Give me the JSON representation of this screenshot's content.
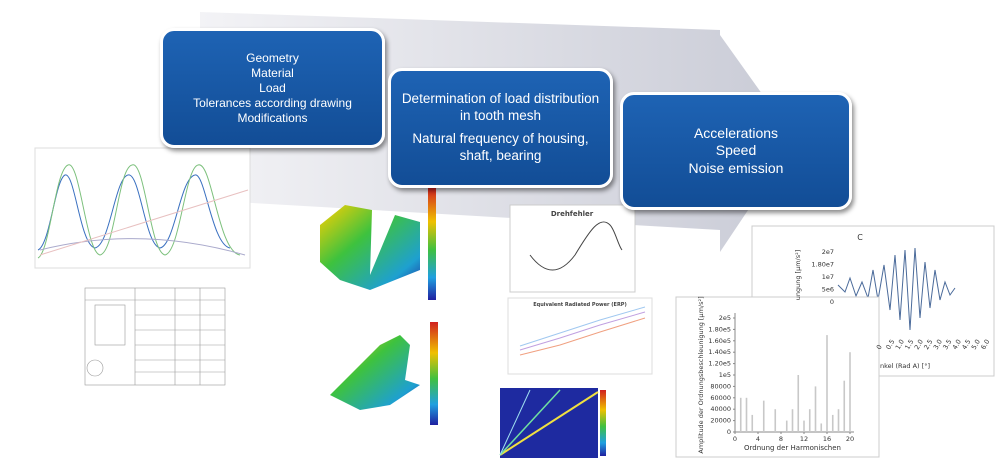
{
  "process_boxes": [
    {
      "lines": [
        "Geometry",
        "Material",
        "Load",
        "Tolerances according drawing",
        "Modifications"
      ]
    },
    {
      "lines": [
        "Determination of load distribution in tooth mesh",
        "Natural frequency of housing, shaft, bearing"
      ]
    },
    {
      "lines": [
        "Accelerations",
        "Speed",
        "Noise emission"
      ]
    }
  ],
  "drehfehler_chart": {
    "title": "Drehfehler"
  },
  "erp_chart": {
    "title": "Equivalent Radiated Power (ERP)"
  },
  "signal_chart": {
    "title": "C",
    "y_label": "ungung [µm/s²]",
    "x_label": "nkel (Rad A) [°]",
    "yticks": [
      "2e7",
      "1.80e7",
      "1e7",
      "5e6",
      "0"
    ],
    "xticks": [
      "0",
      "0.5",
      "1.0",
      "1.5",
      "2.0",
      "2.5",
      "3.0",
      "3.5",
      "4.0",
      "4.5",
      "5.0",
      "6.0"
    ]
  },
  "order_chart": {
    "y_label": "Amplitude der Ordnungsbeschleunigung [µm/s²]",
    "x_label": "Ordnung der Harmonischen",
    "ylim": [
      0,
      200000
    ],
    "yticks": [
      0,
      20000,
      40000,
      60000,
      80000,
      {
        "value": 100000,
        "label": "1e5"
      },
      {
        "value": 120000,
        "label": "1.20e5"
      },
      {
        "value": 140000,
        "label": "1.40e5"
      },
      {
        "value": 160000,
        "label": "1.60e5"
      },
      {
        "value": 180000,
        "label": "1.80e5"
      },
      {
        "value": 200000,
        "label": "2e5"
      }
    ],
    "xlim": [
      0,
      20
    ],
    "xticks": [
      0,
      4,
      8,
      12,
      16,
      20
    ],
    "x": [
      1,
      2,
      3,
      5,
      7,
      9,
      10,
      11,
      12,
      13,
      14,
      15,
      16,
      17,
      18,
      19,
      20
    ],
    "values": [
      60000,
      60000,
      30000,
      55000,
      40000,
      20000,
      40000,
      100000,
      20000,
      40000,
      80000,
      15000,
      170000,
      30000,
      40000,
      90000,
      140000
    ],
    "color": "#c8c8c8"
  }
}
